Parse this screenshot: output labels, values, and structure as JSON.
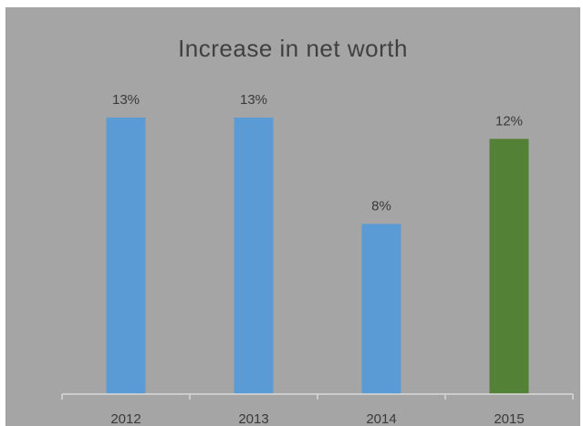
{
  "chart_data": {
    "type": "bar",
    "title": "Increase in net worth",
    "xlabel": "",
    "ylabel": "",
    "categories": [
      "2012",
      "2013",
      "2014",
      "2015"
    ],
    "values": [
      13,
      13,
      8,
      12
    ],
    "data_labels": [
      "13%",
      "13%",
      "8%",
      "12%"
    ],
    "ylim": [
      0,
      16
    ],
    "grid": false,
    "legend": "none",
    "bar_colors": [
      "#5b9bd5",
      "#5b9bd5",
      "#5b9bd5",
      "#538135"
    ]
  },
  "colors": {
    "background": "#a5a5a5",
    "title_text": "#404040",
    "label_text": "#3a3a3a",
    "axis_line": "#d9d9d9"
  }
}
